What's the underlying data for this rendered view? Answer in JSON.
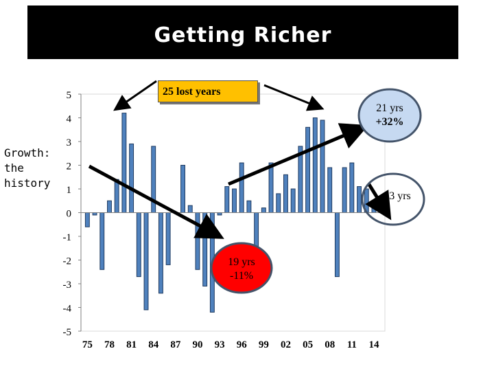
{
  "title": "Getting Richer",
  "side_label": "Growth: the history",
  "annotations": {
    "lost_years": "25 lost years",
    "up_period_years": "21 yrs",
    "up_period_change": "+32%",
    "down_period_years": "19 yrs",
    "down_period_change": "-11%",
    "recent_years": "3 yrs"
  },
  "colors": {
    "bar_fill": "#4f81bd",
    "bar_edge": "#1f3a5f",
    "callout_gold": "#ffc000",
    "callout_red": "#ff0000",
    "callout_blue": "#c6d9f1",
    "circle_border": "#44546a"
  },
  "chart_data": {
    "type": "bar",
    "title": "",
    "xlabel": "",
    "ylabel": "",
    "ylim": [
      -5,
      5
    ],
    "yticks": [
      5,
      4,
      3,
      2,
      1,
      0,
      -1,
      -2,
      -3,
      -4,
      -5
    ],
    "xtick_labels": [
      "75",
      "78",
      "81",
      "84",
      "87",
      "90",
      "93",
      "96",
      "99",
      "02",
      "05",
      "08",
      "11",
      "14"
    ],
    "categories": [
      "75",
      "76",
      "77",
      "78",
      "79",
      "80",
      "81",
      "82",
      "83",
      "84",
      "85",
      "86",
      "87",
      "88",
      "89",
      "90",
      "91",
      "92",
      "93",
      "94",
      "95",
      "96",
      "97",
      "98",
      "99",
      "00",
      "01",
      "02",
      "03",
      "04",
      "05",
      "06",
      "07",
      "08",
      "09",
      "10",
      "11",
      "12",
      "13",
      "14",
      "15"
    ],
    "values": [
      -0.6,
      -0.1,
      -2.4,
      0.5,
      1.4,
      4.2,
      2.9,
      -2.7,
      -4.1,
      2.8,
      -3.4,
      -2.2,
      0.0,
      2.0,
      0.3,
      -2.4,
      -3.1,
      -4.2,
      -0.1,
      1.1,
      1.0,
      2.1,
      0.5,
      -1.6,
      0.2,
      2.1,
      0.8,
      1.6,
      1.0,
      2.8,
      3.6,
      4.0,
      3.9,
      1.9,
      -2.7,
      1.9,
      2.1,
      1.1,
      1.0,
      0.3,
      0.0
    ],
    "grid": false
  }
}
